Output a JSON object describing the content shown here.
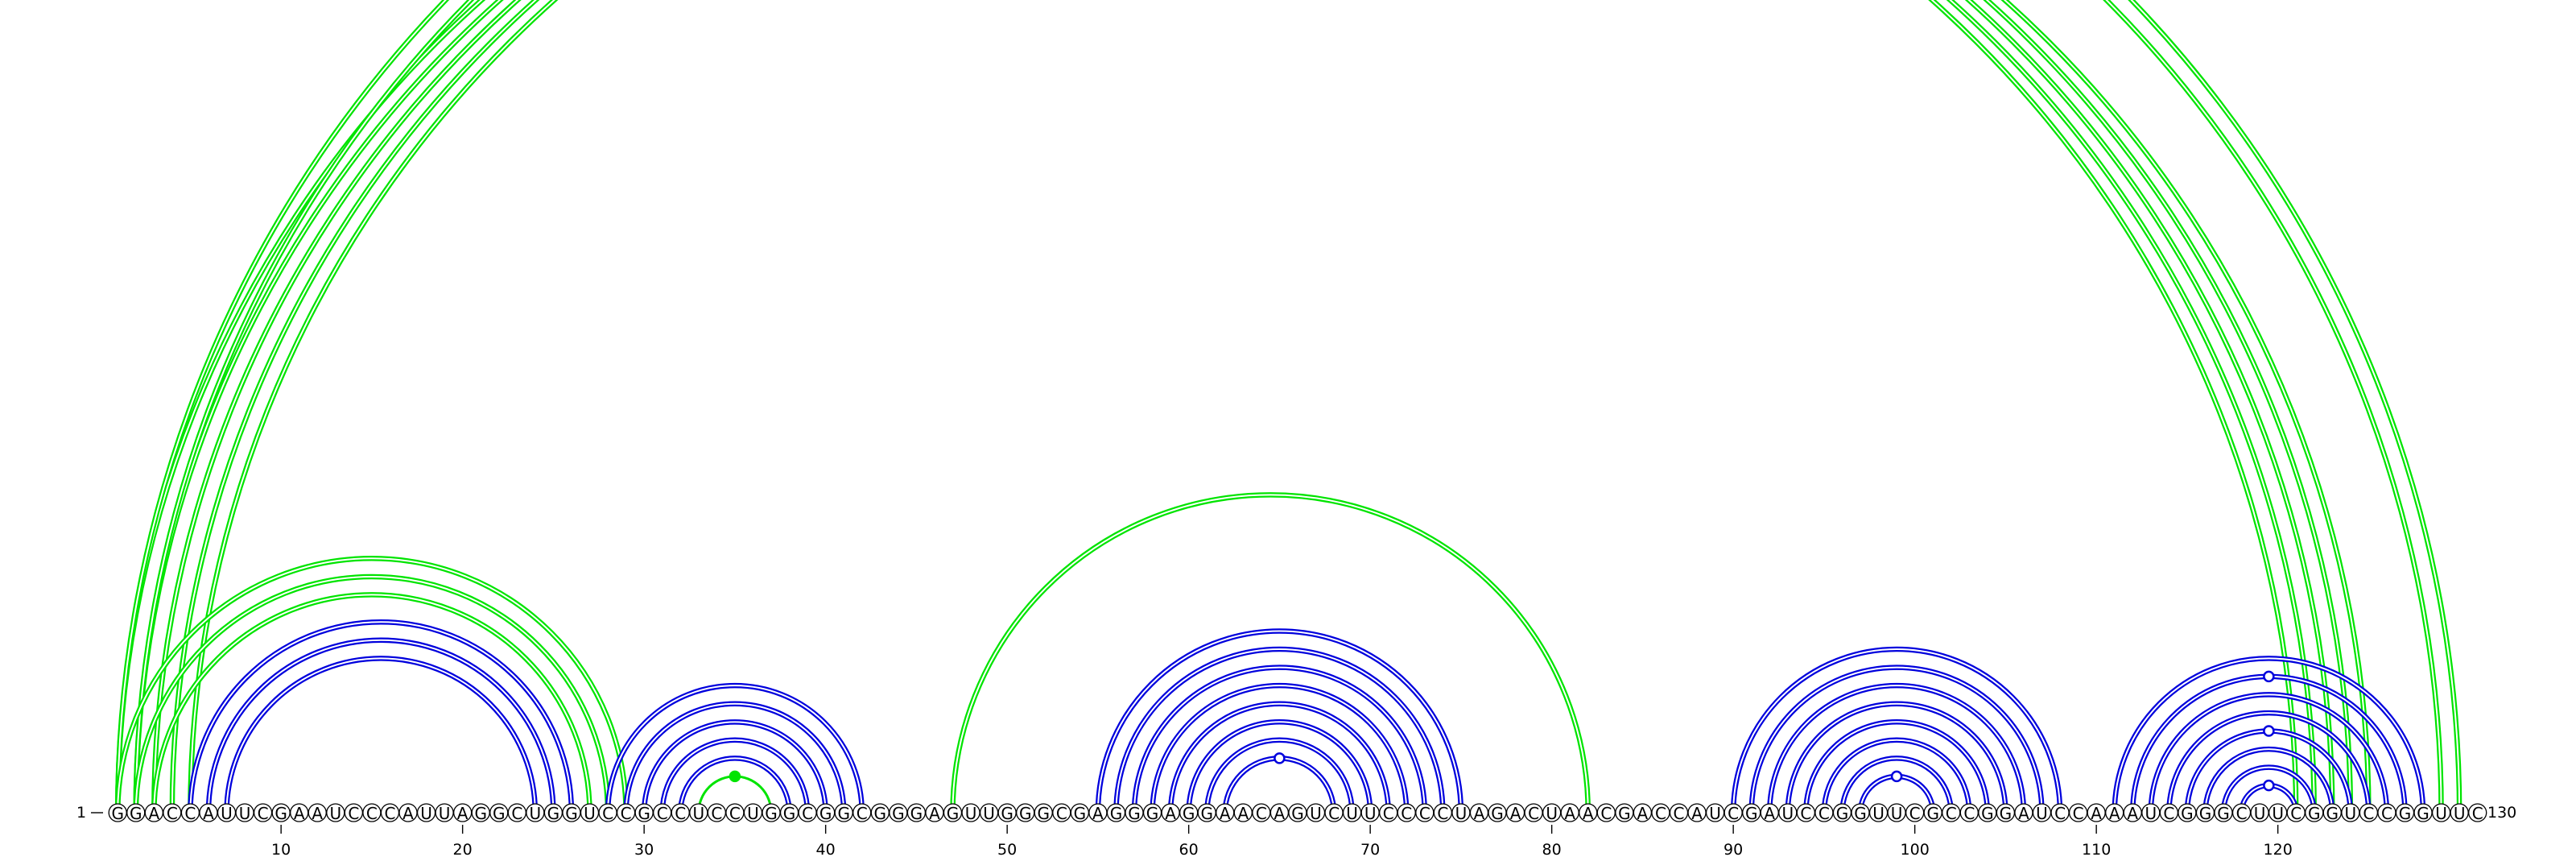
{
  "sequence": "GGACCAUUCGAAUCCCAUUAGGCUGGUCCGCCUCCUGGCGGCGGGAGUUGGGCGAGGGAGGAACAGUCUUCCCCUAGACUAACGACCAUCGAUCCGGUUCGCCGGAUCCAAAUCGGGCUUCGGUCCGGUUC",
  "start_label": "1",
  "end_label": "130",
  "ticks": [
    10,
    20,
    30,
    40,
    50,
    60,
    70,
    80,
    90,
    100,
    110,
    120
  ],
  "colors": {
    "green": "#00e400",
    "blue": "#0000dd",
    "text": "#000000"
  },
  "helices": [
    {
      "color": "green",
      "pairs": [
        [
          1,
          121
        ],
        [
          2,
          122
        ],
        [
          3,
          123
        ],
        [
          4,
          124
        ],
        [
          5,
          125
        ],
        [
          1,
          130
        ],
        [
          2,
          129
        ]
      ],
      "double": true
    },
    {
      "color": "green",
      "pairs": [
        [
          1,
          29
        ],
        [
          2,
          28
        ],
        [
          3,
          27
        ]
      ],
      "double": true
    },
    {
      "color": "green",
      "pairs": [
        [
          47,
          82
        ]
      ],
      "double": true
    },
    {
      "color": "green",
      "pairs": [
        [
          33,
          37
        ]
      ],
      "double": false
    },
    {
      "color": "blue",
      "pairs": [
        [
          5,
          26
        ],
        [
          6,
          25
        ],
        [
          7,
          24
        ]
      ],
      "double": true
    },
    {
      "color": "blue",
      "pairs": [
        [
          28,
          42
        ],
        [
          29,
          41
        ],
        [
          30,
          40
        ],
        [
          31,
          39
        ],
        [
          32,
          38
        ]
      ],
      "double": true
    },
    {
      "color": "blue",
      "pairs": [
        [
          55,
          75
        ],
        [
          56,
          74
        ],
        [
          57,
          73
        ],
        [
          58,
          72
        ],
        [
          59,
          71
        ],
        [
          60,
          70
        ],
        [
          61,
          69
        ],
        [
          62,
          68
        ]
      ],
      "double": true
    },
    {
      "color": "blue",
      "pairs": [
        [
          90,
          108
        ],
        [
          91,
          107
        ],
        [
          92,
          106
        ],
        [
          93,
          105
        ],
        [
          94,
          104
        ],
        [
          95,
          103
        ],
        [
          96,
          102
        ],
        [
          97,
          101
        ]
      ],
      "double": true
    },
    {
      "color": "blue",
      "pairs": [
        [
          111,
          128
        ],
        [
          112,
          127
        ],
        [
          113,
          126
        ],
        [
          114,
          125
        ],
        [
          115,
          124
        ],
        [
          116,
          123
        ],
        [
          117,
          122
        ],
        [
          118,
          121
        ]
      ],
      "double": true
    }
  ],
  "pair_markers": [
    {
      "color": "green",
      "i": 1,
      "j": 130,
      "filled": false
    },
    {
      "color": "green",
      "i": 33,
      "j": 37,
      "filled": true
    },
    {
      "color": "blue",
      "i": 62,
      "j": 68,
      "filled": false
    },
    {
      "color": "blue",
      "i": 97,
      "j": 101,
      "filled": false
    },
    {
      "color": "blue",
      "i": 112,
      "j": 127,
      "filled": false
    },
    {
      "color": "blue",
      "i": 115,
      "j": 124,
      "filled": false
    },
    {
      "color": "blue",
      "i": 118,
      "j": 121,
      "filled": false
    }
  ]
}
